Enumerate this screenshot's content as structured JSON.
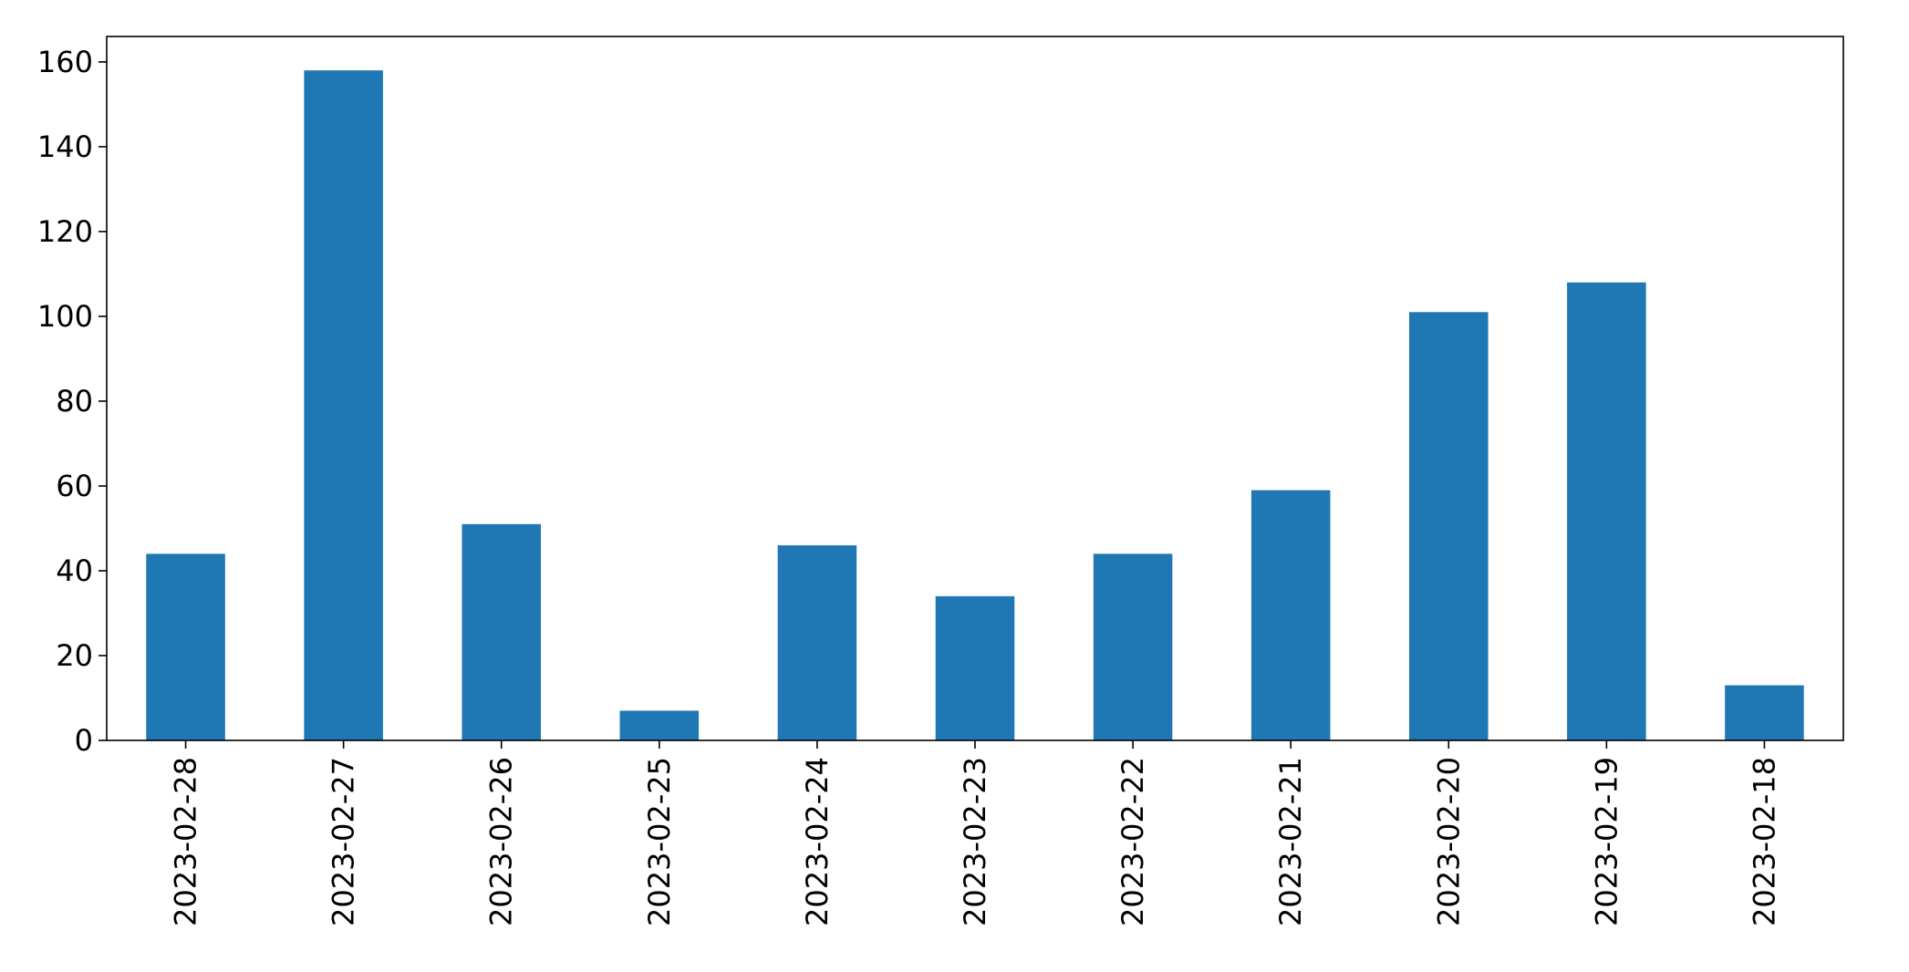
{
  "chart_data": {
    "type": "bar",
    "title": "",
    "xlabel": "",
    "ylabel": "",
    "categories": [
      "2023-02-28",
      "2023-02-27",
      "2023-02-26",
      "2023-02-25",
      "2023-02-24",
      "2023-02-23",
      "2023-02-22",
      "2023-02-21",
      "2023-02-20",
      "2023-02-19",
      "2023-02-18"
    ],
    "values": [
      44,
      158,
      51,
      7,
      46,
      34,
      44,
      59,
      101,
      108,
      13
    ],
    "ylim": [
      0,
      166
    ],
    "yticks": [
      0,
      20,
      40,
      60,
      80,
      100,
      120,
      140,
      160
    ],
    "grid": false,
    "legend": "none",
    "bar_color": "#1f77b4",
    "x_tick_rotation": "vertical"
  }
}
